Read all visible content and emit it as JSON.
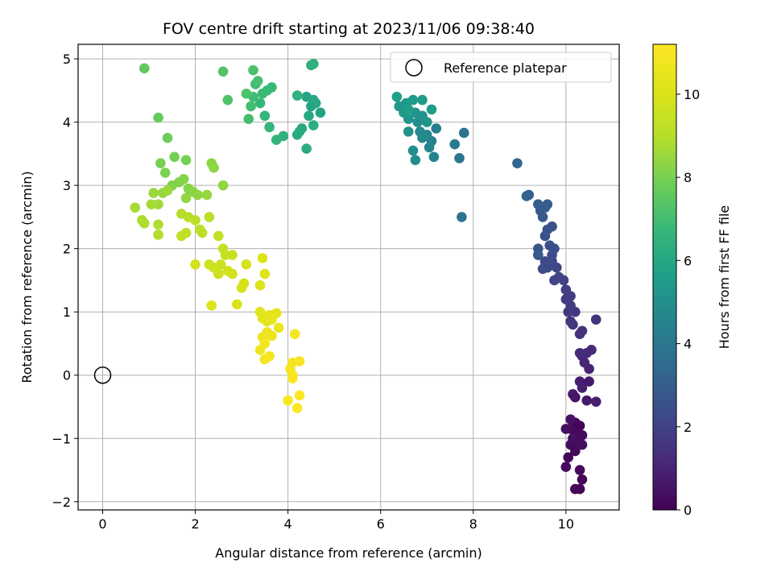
{
  "chart_data": {
    "type": "scatter",
    "title": "FOV centre drift starting at 2023/11/06 09:38:40",
    "xlabel": "Angular distance from reference (arcmin)",
    "ylabel": "Rotation from reference (arcmin)",
    "xlim": [
      -0.53,
      11.15
    ],
    "ylim": [
      -2.13,
      5.23
    ],
    "xticks": [
      0,
      2,
      4,
      6,
      8,
      10
    ],
    "yticks": [
      -2,
      -1,
      0,
      1,
      2,
      3,
      4,
      5
    ],
    "grid": true,
    "legend": {
      "placement": "top-right",
      "entries": [
        "Reference platepar"
      ]
    },
    "reference_point": {
      "name": "Reference platepar",
      "x": 0,
      "y": 0
    },
    "colorbar": {
      "label": "Hours from first FF file",
      "range": [
        0,
        11.2
      ],
      "ticks": [
        0,
        2,
        4,
        6,
        8,
        10
      ],
      "colormap": "viridis"
    },
    "points_fields": [
      "x",
      "y",
      "hours"
    ],
    "points": [
      [
        10.2,
        -0.75,
        0.2
      ],
      [
        10.1,
        -0.85,
        0.3
      ],
      [
        10.25,
        -0.9,
        0.25
      ],
      [
        10.0,
        -0.85,
        0.4
      ],
      [
        10.3,
        -0.8,
        0.1
      ],
      [
        10.15,
        -1.0,
        0.5
      ],
      [
        10.1,
        -1.1,
        0.35
      ],
      [
        10.2,
        -1.2,
        0.2
      ],
      [
        10.35,
        -1.1,
        0.4
      ],
      [
        10.05,
        -1.3,
        0.15
      ],
      [
        10.0,
        -1.45,
        0.3
      ],
      [
        10.3,
        -1.5,
        0.25
      ],
      [
        10.35,
        -1.65,
        0.2
      ],
      [
        10.2,
        -1.8,
        0.1
      ],
      [
        10.3,
        -1.8,
        0.15
      ],
      [
        10.1,
        -0.7,
        0.45
      ],
      [
        10.35,
        -0.95,
        0.3
      ],
      [
        10.25,
        -1.05,
        0.35
      ],
      [
        10.15,
        -0.3,
        0.7
      ],
      [
        10.2,
        -0.35,
        0.6
      ],
      [
        10.3,
        -0.1,
        0.8
      ],
      [
        10.35,
        -0.2,
        0.9
      ],
      [
        10.5,
        -0.1,
        0.7
      ],
      [
        10.45,
        -0.4,
        0.75
      ],
      [
        10.65,
        -0.42,
        0.85
      ],
      [
        10.5,
        0.1,
        1.0
      ],
      [
        10.35,
        0.3,
        1.1
      ],
      [
        10.45,
        0.35,
        1.2
      ],
      [
        10.55,
        0.4,
        1.15
      ],
      [
        10.4,
        0.2,
        1.05
      ],
      [
        10.3,
        0.35,
        1.3
      ],
      [
        10.3,
        0.65,
        1.4
      ],
      [
        10.35,
        0.7,
        1.5
      ],
      [
        10.65,
        0.88,
        1.45
      ],
      [
        10.15,
        0.8,
        1.55
      ],
      [
        10.1,
        0.85,
        1.6
      ],
      [
        10.05,
        1.0,
        1.65
      ],
      [
        10.2,
        1.0,
        1.7
      ],
      [
        10.1,
        1.1,
        1.75
      ],
      [
        10.0,
        1.2,
        1.8
      ],
      [
        10.0,
        1.35,
        1.85
      ],
      [
        10.1,
        1.25,
        1.9
      ],
      [
        9.95,
        1.5,
        2.0
      ],
      [
        9.85,
        1.55,
        2.05
      ],
      [
        9.75,
        1.5,
        2.1
      ],
      [
        9.8,
        1.7,
        2.15
      ],
      [
        9.7,
        1.8,
        2.2
      ],
      [
        9.6,
        1.7,
        2.25
      ],
      [
        9.5,
        1.68,
        2.3
      ],
      [
        9.55,
        1.8,
        2.35
      ],
      [
        9.7,
        1.9,
        2.4
      ],
      [
        9.75,
        2.0,
        2.45
      ],
      [
        9.65,
        2.05,
        2.5
      ],
      [
        9.55,
        2.2,
        2.55
      ],
      [
        9.6,
        2.3,
        2.6
      ],
      [
        9.7,
        2.35,
        2.65
      ],
      [
        9.4,
        2.0,
        2.7
      ],
      [
        9.4,
        1.9,
        2.75
      ],
      [
        9.5,
        2.5,
        2.8
      ],
      [
        9.45,
        2.6,
        2.85
      ],
      [
        9.55,
        2.65,
        2.9
      ],
      [
        9.6,
        2.7,
        2.95
      ],
      [
        9.4,
        2.7,
        3.0
      ],
      [
        9.2,
        2.85,
        3.1
      ],
      [
        9.15,
        2.83,
        3.15
      ],
      [
        8.95,
        3.35,
        3.3
      ],
      [
        7.8,
        3.83,
        3.8
      ],
      [
        7.75,
        2.5,
        3.9
      ],
      [
        7.7,
        3.43,
        4.0
      ],
      [
        7.6,
        3.65,
        4.1
      ],
      [
        7.2,
        3.9,
        4.3
      ],
      [
        7.1,
        3.7,
        4.4
      ],
      [
        7.15,
        3.45,
        4.5
      ],
      [
        7.05,
        3.6,
        4.6
      ],
      [
        7.0,
        3.8,
        4.7
      ],
      [
        6.9,
        3.75,
        4.75
      ],
      [
        6.85,
        3.85,
        4.8
      ],
      [
        6.75,
        3.4,
        4.9
      ],
      [
        6.7,
        3.55,
        4.95
      ],
      [
        6.8,
        4.0,
        5.0
      ],
      [
        6.6,
        3.85,
        5.05
      ],
      [
        6.9,
        4.1,
        5.1
      ],
      [
        7.0,
        4.0,
        5.15
      ],
      [
        6.75,
        4.15,
        5.2
      ],
      [
        6.6,
        4.05,
        5.25
      ],
      [
        6.5,
        4.15,
        5.3
      ],
      [
        6.4,
        4.25,
        5.35
      ],
      [
        6.55,
        4.3,
        5.4
      ],
      [
        6.7,
        4.35,
        5.45
      ],
      [
        6.9,
        4.35,
        5.5
      ],
      [
        7.1,
        4.2,
        5.55
      ],
      [
        6.35,
        4.4,
        5.6
      ],
      [
        6.6,
        4.2,
        5.65
      ],
      [
        4.7,
        4.15,
        5.8
      ],
      [
        4.5,
        4.25,
        5.85
      ],
      [
        4.4,
        4.4,
        5.9
      ],
      [
        4.55,
        4.35,
        5.95
      ],
      [
        4.6,
        4.3,
        6.0
      ],
      [
        4.45,
        4.1,
        6.05
      ],
      [
        4.3,
        3.9,
        6.1
      ],
      [
        4.25,
        3.85,
        6.15
      ],
      [
        4.2,
        3.8,
        6.2
      ],
      [
        4.4,
        3.58,
        6.25
      ],
      [
        4.55,
        3.95,
        6.3
      ],
      [
        4.5,
        4.9,
        6.35
      ],
      [
        4.55,
        4.92,
        6.4
      ],
      [
        4.2,
        4.42,
        6.45
      ],
      [
        3.9,
        3.78,
        6.5
      ],
      [
        3.75,
        3.72,
        6.55
      ],
      [
        3.6,
        3.92,
        6.6
      ],
      [
        3.5,
        4.1,
        6.65
      ],
      [
        3.4,
        4.3,
        6.7
      ],
      [
        3.55,
        4.5,
        6.75
      ],
      [
        3.65,
        4.55,
        6.8
      ],
      [
        3.45,
        4.45,
        6.85
      ],
      [
        3.3,
        4.6,
        6.9
      ],
      [
        3.25,
        4.4,
        6.95
      ],
      [
        3.2,
        4.25,
        7.0
      ],
      [
        3.15,
        4.05,
        7.05
      ],
      [
        3.35,
        4.65,
        7.1
      ],
      [
        3.25,
        4.82,
        7.15
      ],
      [
        3.1,
        4.45,
        7.2
      ],
      [
        2.7,
        4.35,
        7.25
      ],
      [
        2.6,
        4.8,
        7.3
      ],
      [
        0.9,
        4.85,
        7.6
      ],
      [
        1.2,
        4.07,
        7.7
      ],
      [
        1.4,
        3.75,
        7.8
      ],
      [
        1.55,
        3.45,
        7.9
      ],
      [
        1.8,
        3.4,
        7.95
      ],
      [
        1.25,
        3.35,
        8.0
      ],
      [
        1.35,
        3.2,
        8.05
      ],
      [
        1.5,
        3.0,
        8.1
      ],
      [
        1.65,
        3.05,
        8.15
      ],
      [
        1.75,
        3.1,
        8.2
      ],
      [
        1.85,
        2.95,
        8.25
      ],
      [
        1.95,
        2.9,
        8.3
      ],
      [
        2.05,
        2.85,
        8.35
      ],
      [
        1.8,
        2.8,
        8.4
      ],
      [
        2.25,
        2.85,
        8.45
      ],
      [
        1.3,
        2.88,
        8.5
      ],
      [
        1.1,
        2.88,
        8.55
      ],
      [
        1.4,
        2.92,
        8.6
      ],
      [
        1.2,
        2.7,
        8.65
      ],
      [
        1.05,
        2.7,
        8.7
      ],
      [
        0.7,
        2.65,
        8.75
      ],
      [
        0.85,
        2.45,
        8.8
      ],
      [
        0.9,
        2.4,
        8.85
      ],
      [
        1.2,
        2.38,
        8.9
      ],
      [
        1.2,
        2.22,
        8.95
      ],
      [
        1.7,
        2.55,
        9.0
      ],
      [
        1.85,
        2.5,
        9.05
      ],
      [
        2.0,
        2.45,
        9.1
      ],
      [
        2.1,
        2.3,
        9.15
      ],
      [
        2.15,
        2.25,
        9.2
      ],
      [
        1.8,
        2.25,
        9.25
      ],
      [
        1.7,
        2.2,
        9.3
      ],
      [
        2.35,
        3.35,
        8.3
      ],
      [
        2.4,
        3.28,
        8.35
      ],
      [
        2.6,
        3.0,
        8.4
      ],
      [
        2.3,
        2.5,
        9.1
      ],
      [
        2.5,
        2.2,
        9.3
      ],
      [
        2.6,
        2.0,
        9.4
      ],
      [
        2.65,
        1.9,
        9.45
      ],
      [
        2.8,
        1.9,
        9.5
      ],
      [
        2.55,
        1.75,
        9.55
      ],
      [
        2.4,
        1.7,
        9.6
      ],
      [
        2.3,
        1.75,
        9.65
      ],
      [
        2.5,
        1.6,
        9.7
      ],
      [
        2.7,
        1.65,
        9.75
      ],
      [
        2.8,
        1.6,
        9.8
      ],
      [
        2.0,
        1.75,
        9.8
      ],
      [
        3.1,
        1.75,
        9.85
      ],
      [
        3.05,
        1.45,
        9.9
      ],
      [
        3.0,
        1.38,
        9.95
      ],
      [
        2.9,
        1.12,
        10.0
      ],
      [
        2.35,
        1.1,
        10.05
      ],
      [
        3.4,
        1.42,
        10.1
      ],
      [
        3.45,
        1.85,
        10.15
      ],
      [
        3.5,
        1.6,
        10.2
      ],
      [
        3.4,
        1.0,
        10.25
      ],
      [
        3.45,
        0.9,
        10.3
      ],
      [
        3.55,
        0.85,
        10.35
      ],
      [
        3.6,
        0.95,
        10.4
      ],
      [
        3.75,
        0.98,
        10.45
      ],
      [
        3.65,
        0.88,
        10.5
      ],
      [
        3.8,
        0.75,
        10.55
      ],
      [
        3.65,
        0.62,
        10.6
      ],
      [
        3.55,
        0.68,
        10.65
      ],
      [
        3.45,
        0.6,
        10.7
      ],
      [
        3.4,
        0.4,
        10.75
      ],
      [
        3.5,
        0.5,
        10.8
      ],
      [
        3.6,
        0.3,
        10.85
      ],
      [
        3.5,
        0.25,
        10.9
      ],
      [
        4.15,
        0.65,
        10.9
      ],
      [
        4.1,
        0.2,
        10.95
      ],
      [
        4.05,
        0.1,
        11.0
      ],
      [
        4.25,
        0.22,
        11.0
      ],
      [
        4.1,
        0.0,
        11.05
      ],
      [
        4.1,
        -0.05,
        11.1
      ],
      [
        4.0,
        -0.4,
        11.1
      ],
      [
        4.25,
        -0.32,
        11.15
      ],
      [
        4.2,
        -0.52,
        11.2
      ]
    ]
  }
}
